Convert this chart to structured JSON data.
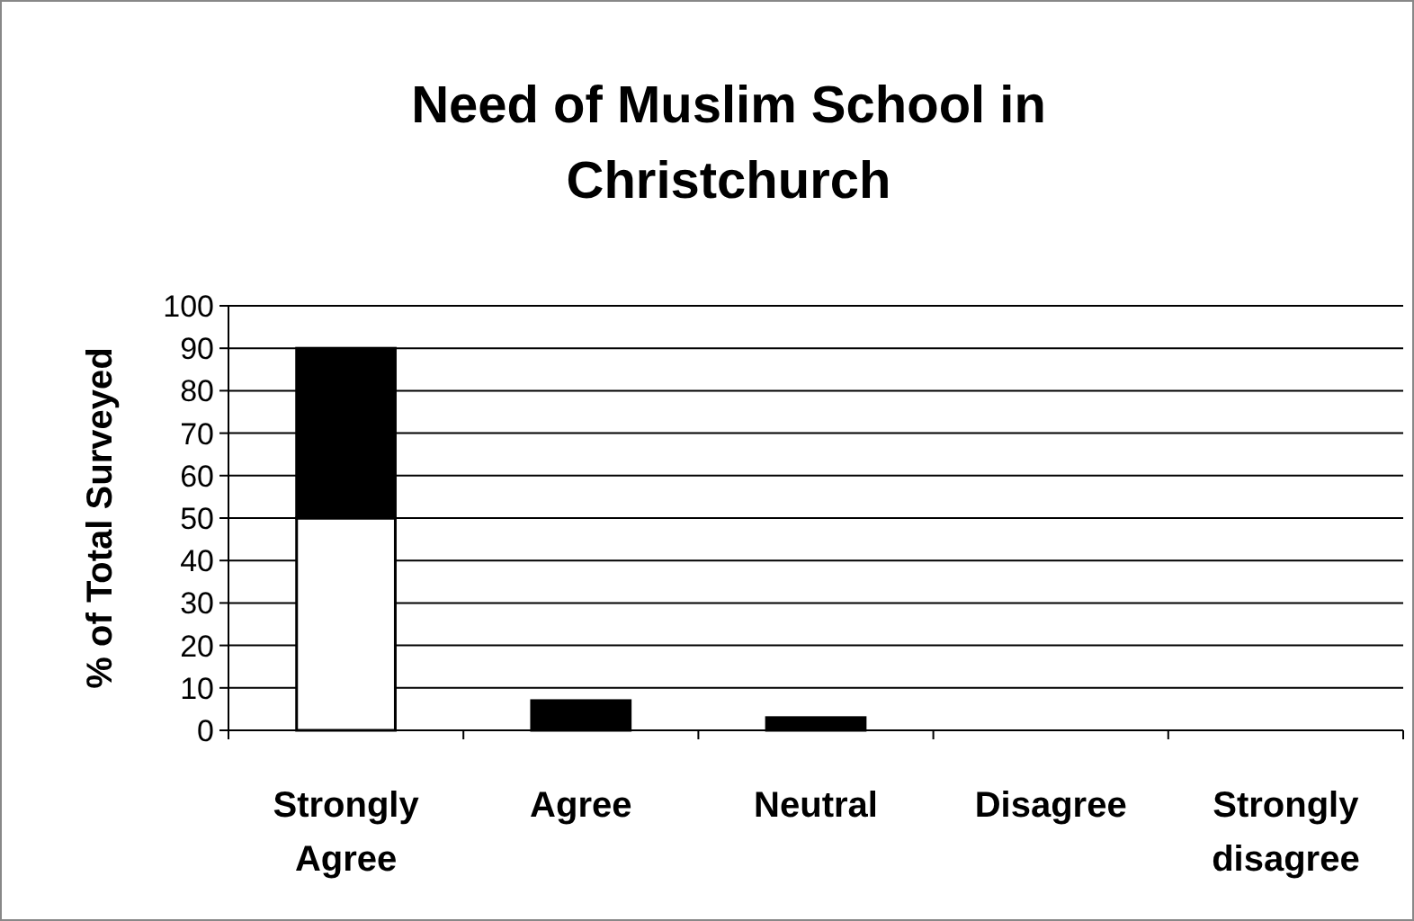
{
  "chart_data": {
    "type": "bar",
    "title": "Need of Muslim School in Christchurch",
    "ylabel": "% of Total Surveyed",
    "categories": [
      "Strongly Agree",
      "Agree",
      "Neutral",
      "Disagree",
      "Strongly disagree"
    ],
    "stacked": true,
    "series": [
      {
        "color": "#ffffff",
        "values": [
          50,
          0,
          0,
          0,
          0
        ]
      },
      {
        "color": "#000000",
        "values": [
          40,
          7,
          3,
          0,
          0
        ]
      }
    ],
    "ylim": [
      0,
      100
    ],
    "yticks": [
      0,
      10,
      20,
      30,
      40,
      50,
      60,
      70,
      80,
      90,
      100
    ],
    "grid": "y"
  }
}
